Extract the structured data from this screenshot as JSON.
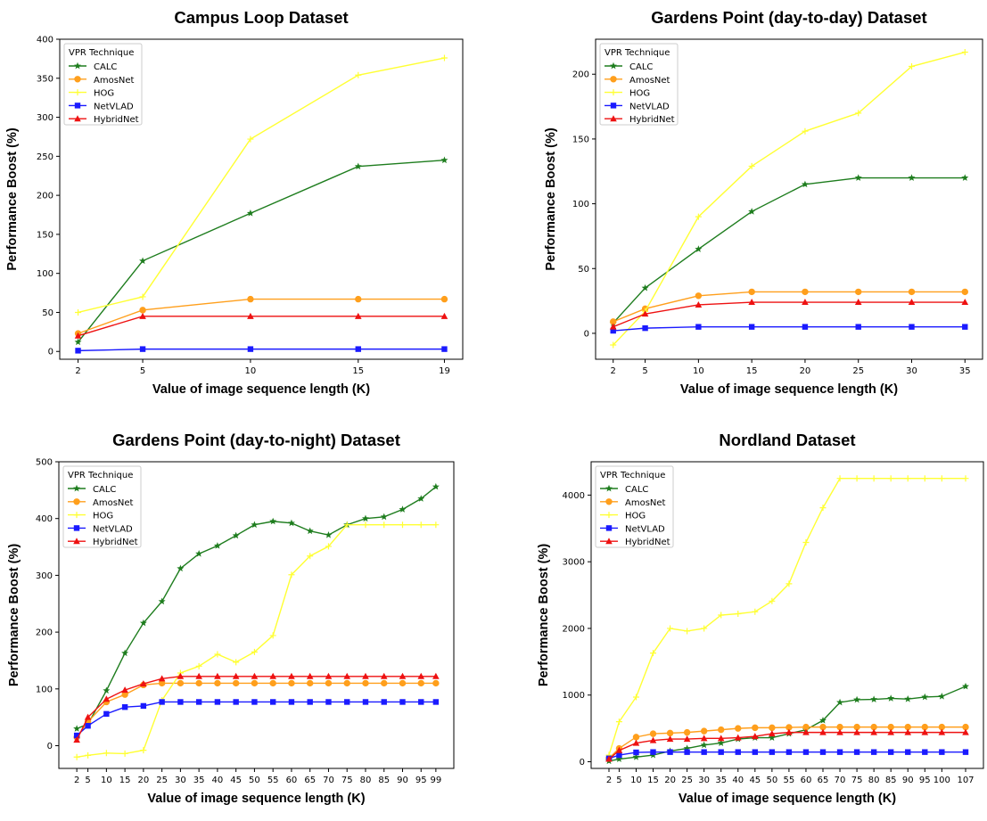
{
  "series_styles": [
    {
      "name": "CALC",
      "color": "#1e7d1e",
      "marker": "star"
    },
    {
      "name": "AmosNet",
      "color": "#ff9f1c",
      "marker": "circle"
    },
    {
      "name": "HOG",
      "color": "#ffff33",
      "marker": "plus"
    },
    {
      "name": "NetVLAD",
      "color": "#1a1aff",
      "marker": "square"
    },
    {
      "name": "HybridNet",
      "color": "#ee1111",
      "marker": "triangle"
    }
  ],
  "chart_data": [
    {
      "type": "line",
      "title": "Campus Loop Dataset",
      "xlabel": "Value of image sequence length (K)",
      "ylabel": "Performance Boost (%)",
      "legend_title": "VPR Technique",
      "legend_position": "top-left",
      "grid": false,
      "xlim": [
        1.15,
        19.85
      ],
      "ylim": [
        -10,
        400
      ],
      "xticks": [
        2,
        5,
        10,
        15,
        19
      ],
      "yticks": [
        0,
        50,
        100,
        150,
        200,
        250,
        300,
        350,
        400
      ],
      "x": [
        2,
        5,
        10,
        15,
        19
      ],
      "series": [
        {
          "name": "CALC",
          "values": [
            12,
            116,
            177,
            237,
            245
          ]
        },
        {
          "name": "AmosNet",
          "values": [
            23,
            53,
            67,
            67,
            67
          ]
        },
        {
          "name": "HOG",
          "values": [
            50,
            70,
            272,
            354,
            376
          ]
        },
        {
          "name": "NetVLAD",
          "values": [
            1,
            3,
            3,
            3,
            3
          ]
        },
        {
          "name": "HybridNet",
          "values": [
            20,
            45,
            45,
            45,
            45
          ]
        }
      ]
    },
    {
      "type": "line",
      "title": "Gardens Point (day-to-day) Dataset",
      "xlabel": "Value of image sequence length (K)",
      "ylabel": "Performance Boost (%)",
      "legend_title": "VPR Technique",
      "legend_position": "top-left",
      "grid": false,
      "xlim": [
        0.35,
        36.65
      ],
      "ylim": [
        -20,
        227
      ],
      "xticks": [
        2,
        5,
        10,
        15,
        20,
        25,
        30,
        35
      ],
      "yticks": [
        0,
        50,
        100,
        150,
        200
      ],
      "x": [
        2,
        5,
        10,
        15,
        20,
        25,
        30,
        35
      ],
      "series": [
        {
          "name": "CALC",
          "values": [
            8,
            35,
            65,
            94,
            115,
            120,
            120,
            120
          ]
        },
        {
          "name": "AmosNet",
          "values": [
            9,
            19,
            29,
            32,
            32,
            32,
            32,
            32
          ]
        },
        {
          "name": "HOG",
          "values": [
            -9,
            17,
            90,
            129,
            156,
            170,
            206,
            217
          ]
        },
        {
          "name": "NetVLAD",
          "values": [
            2,
            4,
            5,
            5,
            5,
            5,
            5,
            5
          ]
        },
        {
          "name": "HybridNet",
          "values": [
            5,
            15,
            22,
            24,
            24,
            24,
            24,
            24
          ]
        }
      ]
    },
    {
      "type": "line",
      "title": "Gardens Point (day-to-night) Dataset",
      "xlabel": "Value of image sequence length (K)",
      "ylabel": "Performance Boost (%)",
      "legend_title": "VPR Technique",
      "legend_position": "top-left",
      "grid": false,
      "xlim": [
        -2.85,
        103.85
      ],
      "ylim": [
        -40,
        500
      ],
      "xticks": [
        2,
        5,
        10,
        15,
        20,
        25,
        30,
        35,
        40,
        45,
        50,
        55,
        60,
        65,
        70,
        75,
        80,
        85,
        90,
        95,
        99
      ],
      "yticks": [
        0,
        100,
        200,
        300,
        400,
        500
      ],
      "x": [
        2,
        5,
        10,
        15,
        20,
        25,
        30,
        35,
        40,
        45,
        50,
        55,
        60,
        65,
        70,
        75,
        80,
        85,
        90,
        95,
        99
      ],
      "series": [
        {
          "name": "CALC",
          "values": [
            30,
            38,
            97,
            163,
            216,
            254,
            312,
            338,
            352,
            370,
            389,
            395,
            392,
            378,
            371,
            389,
            400,
            403,
            416,
            435,
            456
          ]
        },
        {
          "name": "AmosNet",
          "values": [
            15,
            42,
            77,
            90,
            107,
            110,
            110,
            110,
            110,
            110,
            110,
            110,
            110,
            110,
            110,
            110,
            110,
            110,
            110,
            110,
            110
          ]
        },
        {
          "name": "HOG",
          "values": [
            -20,
            -17,
            -13,
            -14,
            -8,
            80,
            128,
            140,
            161,
            147,
            165,
            194,
            301,
            334,
            351,
            389,
            389,
            389,
            389,
            389,
            389
          ]
        },
        {
          "name": "NetVLAD",
          "values": [
            18,
            35,
            56,
            68,
            70,
            77,
            77,
            77,
            77,
            77,
            77,
            77,
            77,
            77,
            77,
            77,
            77,
            77,
            77,
            77,
            77
          ]
        },
        {
          "name": "HybridNet",
          "values": [
            10,
            50,
            82,
            98,
            109,
            118,
            122,
            122,
            122,
            122,
            122,
            122,
            122,
            122,
            122,
            122,
            122,
            122,
            122,
            122,
            122
          ]
        }
      ]
    },
    {
      "type": "line",
      "title": "Nordland Dataset",
      "xlabel": "Value of image sequence length (K)",
      "ylabel": "Performance Boost (%)",
      "legend_title": "VPR Technique",
      "legend_position": "top-left",
      "grid": false,
      "xlim": [
        -3.25,
        112.25
      ],
      "ylim": [
        -100,
        4500
      ],
      "xticks": [
        2,
        5,
        10,
        15,
        20,
        25,
        30,
        35,
        40,
        45,
        50,
        55,
        60,
        65,
        70,
        75,
        80,
        85,
        90,
        95,
        100,
        107
      ],
      "yticks": [
        0,
        1000,
        2000,
        3000,
        4000
      ],
      "x": [
        2,
        5,
        10,
        15,
        20,
        25,
        30,
        35,
        40,
        45,
        50,
        55,
        60,
        65,
        70,
        75,
        80,
        85,
        90,
        95,
        100,
        107
      ],
      "series": [
        {
          "name": "CALC",
          "values": [
            10,
            40,
            70,
            100,
            160,
            200,
            250,
            280,
            340,
            360,
            360,
            420,
            480,
            620,
            890,
            930,
            935,
            950,
            940,
            970,
            980,
            1130
          ]
        },
        {
          "name": "AmosNet",
          "values": [
            50,
            200,
            370,
            420,
            430,
            440,
            460,
            480,
            500,
            510,
            510,
            515,
            520,
            520,
            520,
            520,
            520,
            520,
            520,
            520,
            520,
            520
          ]
        },
        {
          "name": "HOG",
          "values": [
            100,
            600,
            970,
            1630,
            2000,
            1960,
            2000,
            2200,
            2220,
            2250,
            2410,
            2670,
            3290,
            3810,
            4250,
            4250,
            4250,
            4250,
            4250,
            4250,
            4250,
            4250
          ]
        },
        {
          "name": "NetVLAD",
          "values": [
            50,
            100,
            140,
            145,
            145,
            145,
            145,
            145,
            145,
            145,
            145,
            145,
            145,
            145,
            145,
            145,
            145,
            145,
            145,
            145,
            145,
            145
          ]
        },
        {
          "name": "HybridNet",
          "values": [
            40,
            170,
            280,
            320,
            340,
            340,
            350,
            350,
            360,
            380,
            420,
            440,
            440,
            440,
            440,
            440,
            440,
            440,
            440,
            440,
            440,
            440
          ]
        }
      ]
    }
  ]
}
